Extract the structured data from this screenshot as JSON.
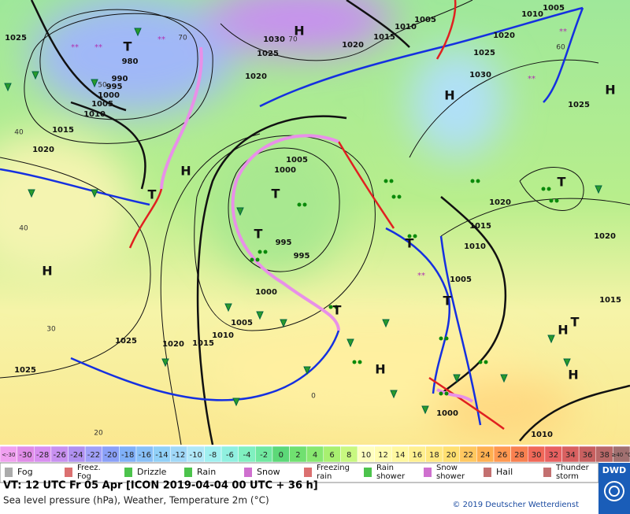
{
  "map": {
    "centers": [
      "H",
      "H",
      "H",
      "H",
      "H",
      "H",
      "H",
      "H",
      "T",
      "T",
      "T",
      "T",
      "T",
      "T",
      "T",
      "T",
      "T"
    ],
    "isobar_labels": [
      "1025",
      "1020",
      "1015",
      "1020",
      "1010",
      "1005",
      "1000",
      "995",
      "990",
      "980",
      "1030",
      "1025",
      "1015",
      "1010",
      "1005",
      "1020",
      "1005",
      "1000",
      "995",
      "995",
      "1000",
      "1005",
      "1010",
      "1015",
      "1020",
      "1025",
      "1025",
      "1005",
      "1010",
      "1020",
      "1025",
      "1030",
      "1025",
      "1020",
      "1015",
      "1010",
      "1005",
      "1020",
      "1015",
      "1000",
      "1010"
    ],
    "temperature_labels": [
      "40",
      "30",
      "20",
      "40",
      "50",
      "70",
      "70",
      "60",
      "0"
    ]
  },
  "scale": {
    "labels": [
      "<-30",
      "-30",
      "-28",
      "-26",
      "-24",
      "-22",
      "-20",
      "-18",
      "-16",
      "-14",
      "-12",
      "-10",
      "-8",
      "-6",
      "-4",
      "-2",
      "0",
      "2",
      "4",
      "6",
      "8",
      "10",
      "12",
      "14",
      "16",
      "18",
      "20",
      "22",
      "24",
      "26",
      "28",
      "30",
      "32",
      "34",
      "36",
      "38",
      "≥40 °C"
    ]
  },
  "legend": {
    "items": [
      "Fog",
      "Freez. Fog",
      "Drizzle",
      "Rain",
      "Snow",
      "Freezing rain",
      "Rain shower",
      "Snow shower",
      "Hail",
      "Thunder storm"
    ]
  },
  "info": {
    "valid_time": "VT: 12 UTC Fr  05 Apr [ICON 2019-04-04  00 UTC + 36 h]",
    "description": "Sea level pressure (hPa), Weather, Temperature 2m (°C)",
    "copyright": "© 2019 Deutscher Wetterdienst",
    "logo": "DWD"
  }
}
